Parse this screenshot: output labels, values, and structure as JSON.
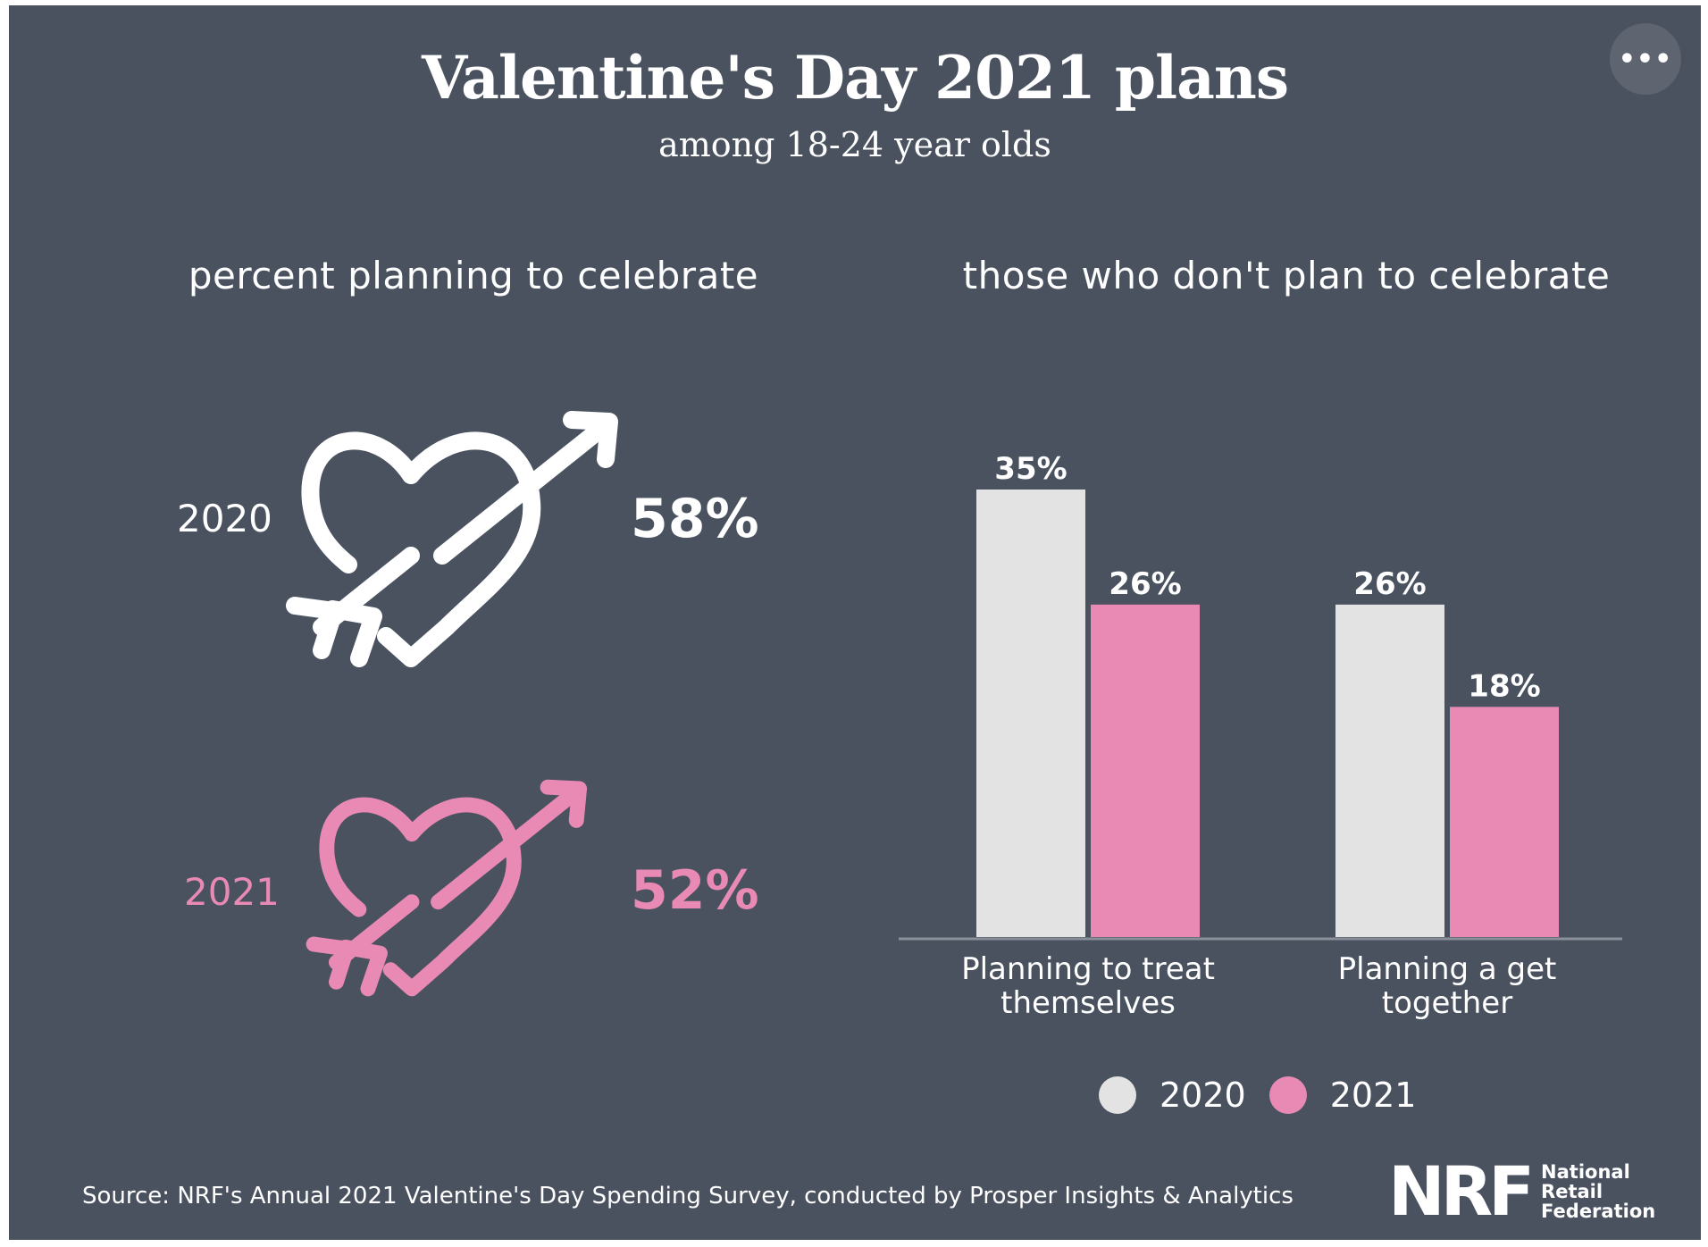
{
  "header": {
    "title": "Valentine's Day 2021 plans",
    "subtitle": "among 18-24 year olds",
    "more_label": "•••"
  },
  "left_panel": {
    "heading": "percent planning to celebrate",
    "rows": [
      {
        "year": "2020",
        "percent": "58%",
        "color": "#ffffff"
      },
      {
        "year": "2021",
        "percent": "52%",
        "color": "#e98ab5"
      }
    ]
  },
  "right_panel": {
    "heading": "those who don't plan to celebrate"
  },
  "chart_data": {
    "type": "bar",
    "title": "those who don't plan to celebrate",
    "categories": [
      "Planning to treat themselves",
      "Planning a get together"
    ],
    "series": [
      {
        "name": "2020",
        "color": "#e3e3e3",
        "values": [
          35,
          26
        ]
      },
      {
        "name": "2021",
        "color": "#e98ab5",
        "values": [
          26,
          18
        ]
      }
    ],
    "data_labels": [
      [
        "35%",
        "26%"
      ],
      [
        "26%",
        "18%"
      ]
    ],
    "category_labels": [
      [
        "Planning to treat",
        "themselves"
      ],
      [
        "Planning a get",
        "together"
      ]
    ],
    "ylim": [
      0,
      35
    ],
    "grid": false,
    "legend": "bottom"
  },
  "legend": {
    "items": [
      {
        "label": "2020",
        "color": "#e3e3e3"
      },
      {
        "label": "2021",
        "color": "#e98ab5"
      }
    ]
  },
  "footer": {
    "source": "Source: NRF's Annual 2021 Valentine's Day Spending Survey, conducted by Prosper Insights & Analytics",
    "logo_mark": "NRF",
    "logo_lines": [
      "National",
      "Retail",
      "Federation"
    ]
  }
}
